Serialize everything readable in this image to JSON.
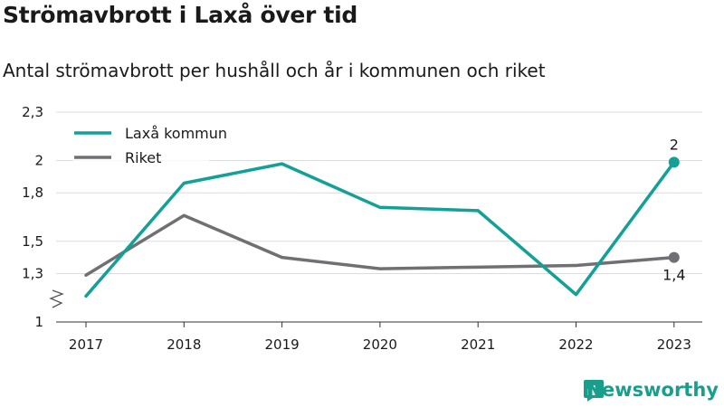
{
  "chart_data": {
    "type": "line",
    "title": "Strömavbrott i Laxå över tid",
    "subtitle": "Antal strömavbrott per hushåll och år i kommunen och riket",
    "categories": [
      "2017",
      "2018",
      "2019",
      "2020",
      "2021",
      "2022",
      "2023"
    ],
    "ylim": [
      1,
      2.3
    ],
    "yticks": [
      1,
      1.3,
      1.5,
      1.8,
      2,
      2.3
    ],
    "ytick_labels": [
      "1",
      "1,3",
      "1,5",
      "1,8",
      "2",
      "2,3"
    ],
    "grid": true,
    "legend_position": "top-left",
    "series": [
      {
        "name": "Laxå kommun",
        "color": "#13a096",
        "values": [
          1.16,
          1.86,
          1.98,
          1.71,
          1.69,
          1.17,
          1.99
        ],
        "end_label": "2"
      },
      {
        "name": "Riket",
        "color": "#707074",
        "values": [
          1.29,
          1.66,
          1.4,
          1.33,
          1.34,
          1.35,
          1.4
        ],
        "end_label": "1,4"
      }
    ]
  },
  "brand": {
    "name": "Newsworthy"
  }
}
